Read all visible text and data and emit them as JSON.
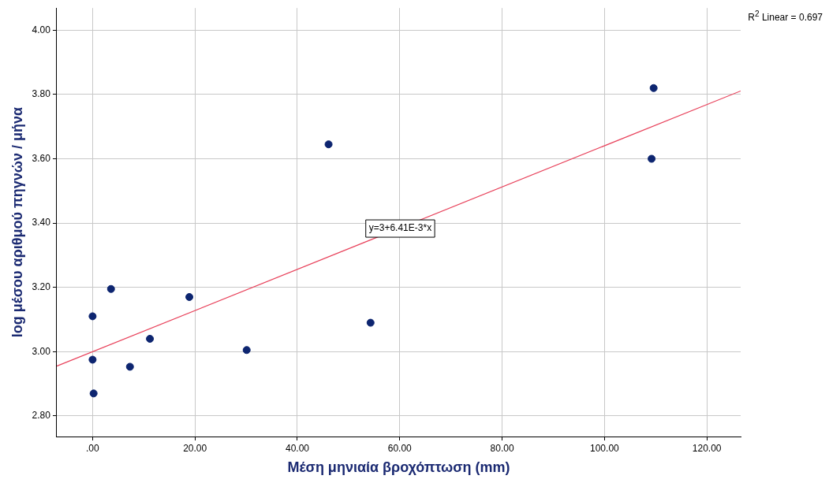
{
  "chart_data": {
    "type": "scatter",
    "xlabel": "Μέση μηνιαία βροχόπτωση (mm)",
    "ylabel": "log μέσου αριθμού πηγνών / μήνα",
    "series": [
      {
        "marker": "circle",
        "color": "#0d2570",
        "x": [
          0,
          0,
          0.2,
          3.6,
          7.3,
          11.2,
          18.9,
          30.1,
          46.1,
          54.3,
          109.2,
          109.6
        ],
        "values": [
          3.11,
          2.975,
          2.87,
          3.195,
          2.953,
          3.04,
          3.17,
          3.005,
          3.645,
          3.09,
          3.6,
          3.82
        ]
      },
      {
        "type": "line",
        "color": "#e8435c",
        "x": [
          -7,
          126.6
        ],
        "values": [
          2.955,
          3.811
        ]
      }
    ],
    "xlim": [
      -7,
      126.6
    ],
    "xticks": [
      {
        "value": 0,
        "label": ".00"
      },
      {
        "value": 20,
        "label": "20.00"
      },
      {
        "value": 40,
        "label": "40.00"
      },
      {
        "value": 60,
        "label": "60.00"
      },
      {
        "value": 80,
        "label": "80.00"
      },
      {
        "value": 100,
        "label": "100.00"
      },
      {
        "value": 120,
        "label": "120.00"
      }
    ],
    "ylim": [
      2.736,
      4.069
    ],
    "yticks": [
      {
        "value": 2.8,
        "label": "2.80"
      },
      {
        "value": 3,
        "label": "3.00"
      },
      {
        "value": 3.2,
        "label": "3.20"
      },
      {
        "value": 3.4,
        "label": "3.40"
      },
      {
        "value": 3.6,
        "label": "3.60"
      },
      {
        "value": 3.8,
        "label": "3.80"
      },
      {
        "value": 4,
        "label": "4.00"
      }
    ],
    "grid": true,
    "legend": false,
    "annotations": [
      "R$^{2}$ Linear = 0.697",
      {
        "text": "y=3+6.41E-3*x",
        "x": 60.1,
        "y": 3.383
      }
    ]
  }
}
